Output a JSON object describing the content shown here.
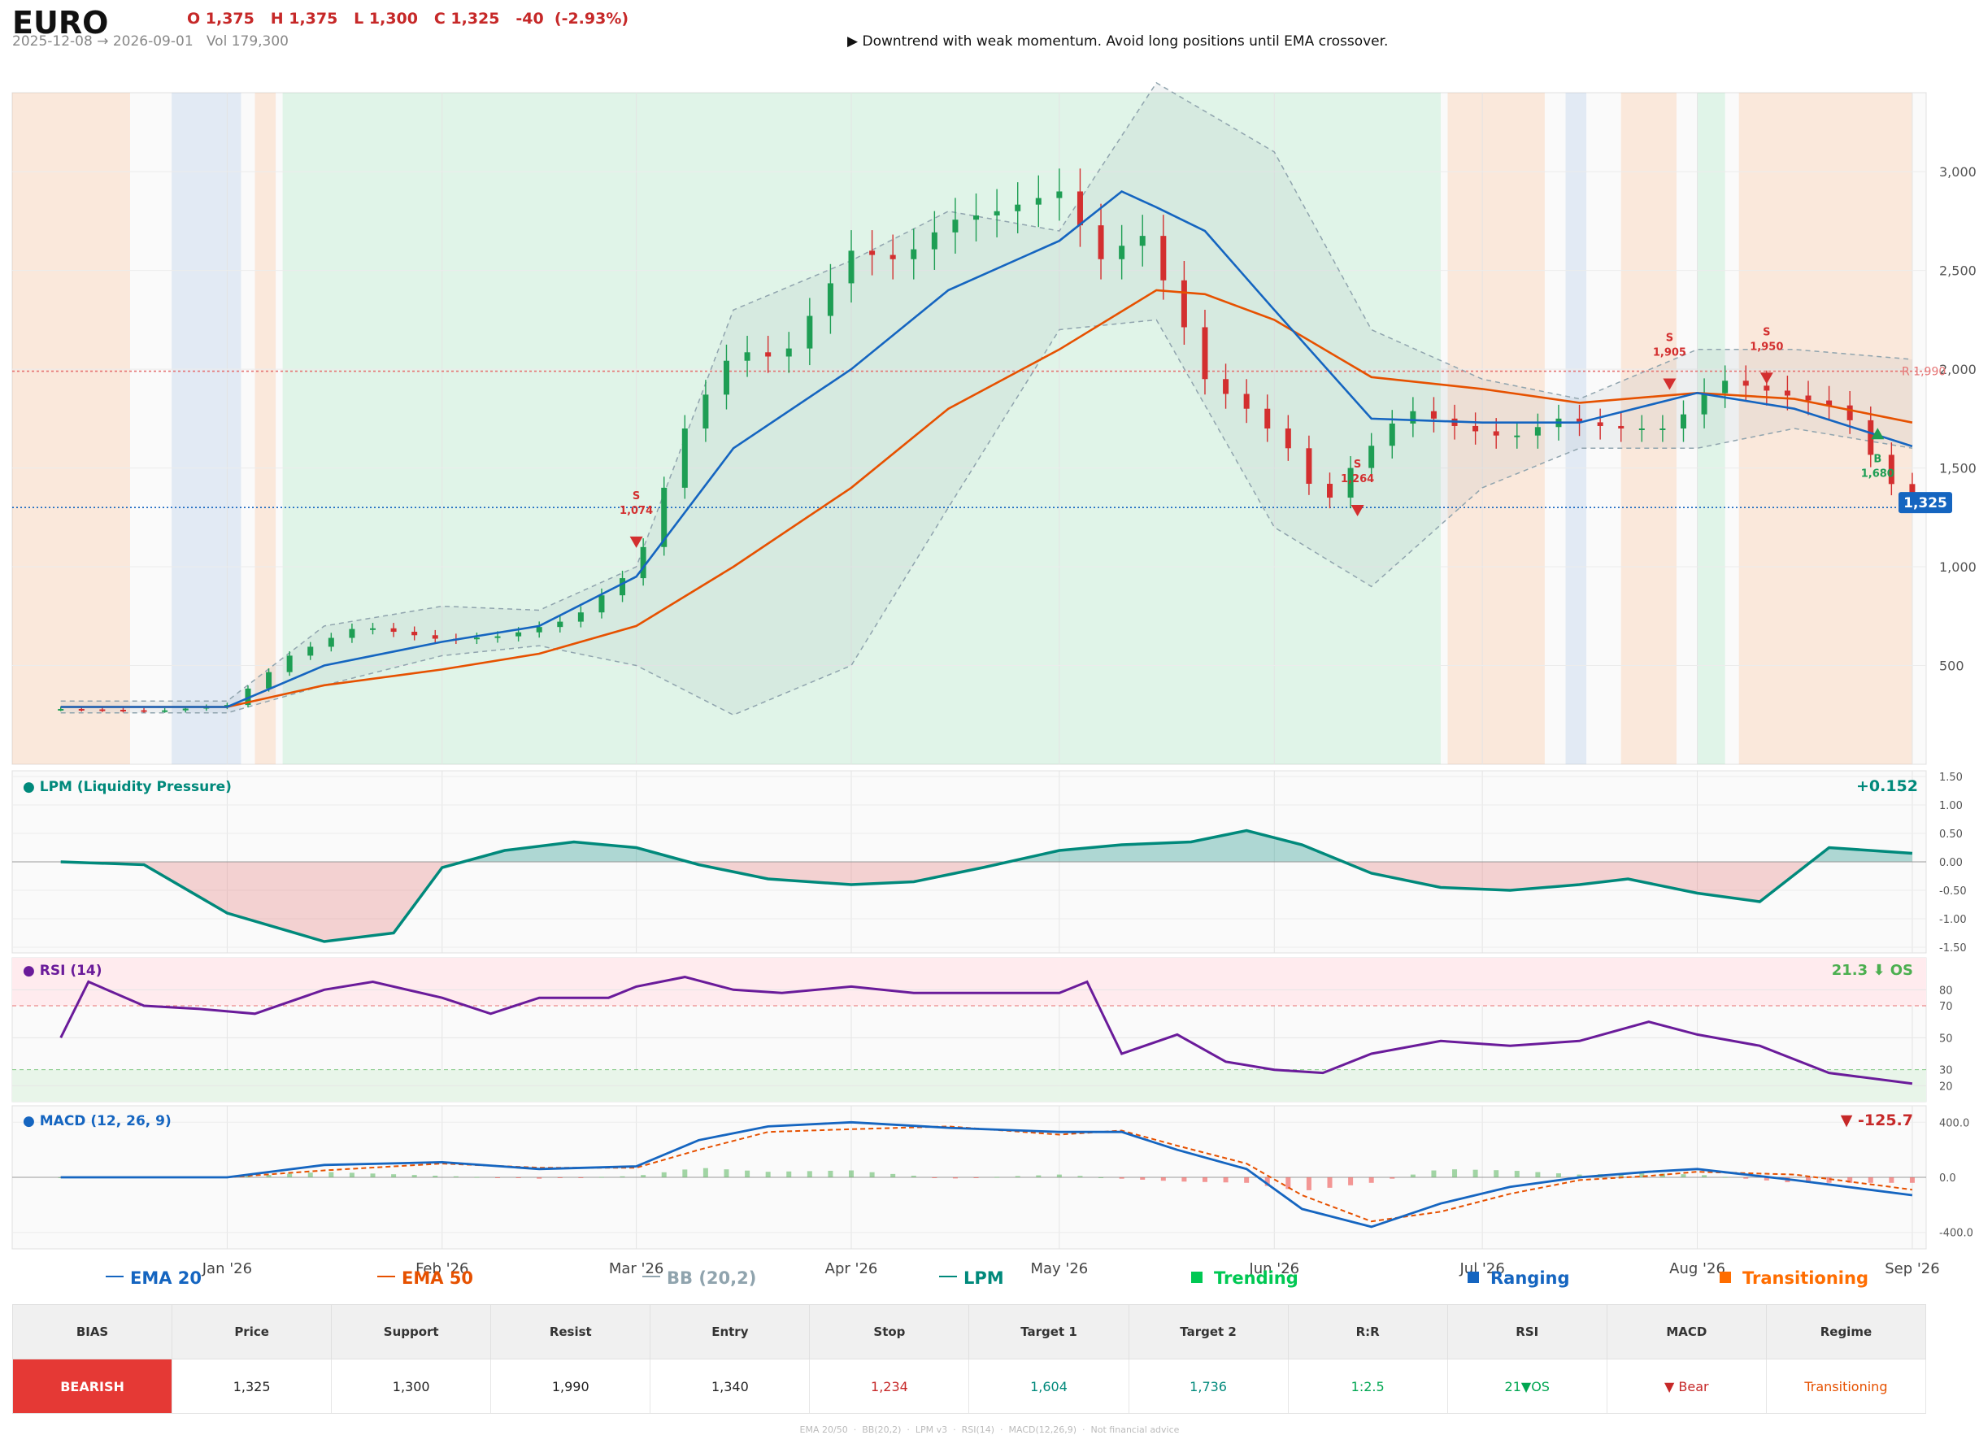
{
  "header": {
    "symbol": "EURO",
    "ohlc": "O 1,375   H 1,375   L 1,300   C 1,325   -40  (-2.93%)",
    "range_volume": "2025-12-08 → 2026-09-01   Vol 179,300",
    "note": "▶  Downtrend with weak momentum. Avoid long positions until EMA crossover."
  },
  "colors": {
    "ema20": "#1565c0",
    "ema50": "#e65100",
    "bb": "#90a4ae",
    "lpm": "#00897b",
    "trending": "#00c853",
    "ranging": "#1565c0",
    "transitioning": "#ff6d00",
    "bull_candle": "#1e9e54",
    "bear_candle": "#d32f2f",
    "rsi": "#6a1b9a",
    "macd": "#1565c0",
    "macd_signal": "#e65100",
    "bearish": "#e53935"
  },
  "chart_data": [
    {
      "type": "candlestick",
      "title": "EURO",
      "x_range": [
        "2025-12-08",
        "2026-09-01"
      ],
      "x_ticks": [
        "Jan '26",
        "Feb '26",
        "Mar '26",
        "Apr '26",
        "May '26",
        "Jun '26",
        "Jul '26",
        "Aug '26",
        "Sep '26"
      ],
      "y_ticks": [
        "500",
        "1,000",
        "1,500",
        "2,000",
        "2,500",
        "3,000"
      ],
      "ylim": [
        0,
        3400
      ],
      "last_price_label": "1,325",
      "resistance_label": "R 1,990",
      "resistance": 1990,
      "support": 1300,
      "series": [
        {
          "name": "EMA 20",
          "x": [
            "2025-12-08",
            "2026-01-01",
            "2026-01-15",
            "2026-02-01",
            "2026-02-15",
            "2026-03-01",
            "2026-03-15",
            "2026-04-01",
            "2026-04-15",
            "2026-05-01",
            "2026-05-10",
            "2026-05-15",
            "2026-05-22",
            "2026-06-01",
            "2026-06-15",
            "2026-07-01",
            "2026-07-15",
            "2026-08-01",
            "2026-08-15",
            "2026-09-01"
          ],
          "values": [
            290,
            290,
            500,
            620,
            700,
            950,
            1600,
            2000,
            2400,
            2650,
            2900,
            2820,
            2700,
            2300,
            1750,
            1730,
            1730,
            1880,
            1800,
            1610
          ]
        },
        {
          "name": "EMA 50",
          "x": [
            "2025-12-08",
            "2026-01-01",
            "2026-01-15",
            "2026-02-01",
            "2026-02-15",
            "2026-03-01",
            "2026-03-15",
            "2026-04-01",
            "2026-04-15",
            "2026-05-01",
            "2026-05-15",
            "2026-05-22",
            "2026-06-01",
            "2026-06-15",
            "2026-07-01",
            "2026-07-15",
            "2026-08-01",
            "2026-08-15",
            "2026-09-01"
          ],
          "values": [
            290,
            290,
            400,
            480,
            560,
            700,
            1000,
            1400,
            1800,
            2100,
            2400,
            2380,
            2250,
            1960,
            1900,
            1830,
            1880,
            1850,
            1730
          ]
        },
        {
          "name": "BB upper",
          "x": [
            "2025-12-08",
            "2026-01-01",
            "2026-01-15",
            "2026-02-01",
            "2026-02-15",
            "2026-03-01",
            "2026-03-15",
            "2026-04-01",
            "2026-04-15",
            "2026-05-01",
            "2026-05-15",
            "2026-06-01",
            "2026-06-15",
            "2026-07-01",
            "2026-07-15",
            "2026-08-01",
            "2026-08-15",
            "2026-09-01"
          ],
          "values": [
            320,
            320,
            700,
            800,
            780,
            1000,
            2300,
            2550,
            2800,
            2700,
            3450,
            3100,
            2200,
            1950,
            1850,
            2100,
            2100,
            2050
          ]
        },
        {
          "name": "BB lower",
          "x": [
            "2025-12-08",
            "2026-01-01",
            "2026-01-15",
            "2026-02-01",
            "2026-02-15",
            "2026-03-01",
            "2026-03-15",
            "2026-04-01",
            "2026-04-15",
            "2026-05-01",
            "2026-05-15",
            "2026-06-01",
            "2026-06-15",
            "2026-07-01",
            "2026-07-15",
            "2026-08-01",
            "2026-08-15",
            "2026-09-01"
          ],
          "values": [
            260,
            260,
            400,
            550,
            600,
            500,
            250,
            500,
            1300,
            2200,
            2250,
            1200,
            900,
            1400,
            1600,
            1600,
            1700,
            1600
          ]
        },
        {
          "name": "Close",
          "x": [
            "2025-12-08",
            "2025-12-22",
            "2026-01-01",
            "2026-01-10",
            "2026-01-20",
            "2026-02-01",
            "2026-02-10",
            "2026-02-20",
            "2026-03-01",
            "2026-03-08",
            "2026-03-15",
            "2026-03-22",
            "2026-04-01",
            "2026-04-08",
            "2026-04-15",
            "2026-04-22",
            "2026-05-01",
            "2026-05-08",
            "2026-05-12",
            "2026-05-18",
            "2026-05-22",
            "2026-05-28",
            "2026-06-03",
            "2026-06-08",
            "2026-06-12",
            "2026-06-20",
            "2026-06-28",
            "2026-07-05",
            "2026-07-12",
            "2026-07-20",
            "2026-07-28",
            "2026-08-04",
            "2026-08-10",
            "2026-08-16",
            "2026-08-22",
            "2026-08-28",
            "2026-09-01"
          ],
          "values": [
            280,
            270,
            300,
            550,
            700,
            630,
            650,
            740,
            1000,
            1700,
            2100,
            2050,
            2600,
            2550,
            2750,
            2800,
            2900,
            2500,
            2750,
            2300,
            1950,
            1800,
            1600,
            1300,
            1500,
            1800,
            1700,
            1650,
            1750,
            1700,
            1700,
            1950,
            1900,
            1850,
            1800,
            1450,
            1325
          ]
        }
      ],
      "signals": [
        {
          "type": "S",
          "value": "1,074"
        },
        {
          "type": "S",
          "value": "1,264"
        },
        {
          "type": "S",
          "value": "1,905"
        },
        {
          "type": "S",
          "value": "1,950"
        },
        {
          "type": "B",
          "value": "1,680"
        }
      ]
    },
    {
      "type": "area",
      "title": "● LPM (Liquidity Pressure)",
      "value_label": "+0.152",
      "y_ticks": [
        "1.50",
        "1.00",
        "0.50",
        "0.00",
        "-0.50",
        "-1.00",
        "-1.50"
      ],
      "ylim": [
        -1.6,
        1.6
      ],
      "x": [
        "2025-12-08",
        "2025-12-20",
        "2026-01-01",
        "2026-01-15",
        "2026-01-25",
        "2026-02-01",
        "2026-02-10",
        "2026-02-20",
        "2026-03-01",
        "2026-03-10",
        "2026-03-20",
        "2026-04-01",
        "2026-04-10",
        "2026-04-20",
        "2026-05-01",
        "2026-05-10",
        "2026-05-20",
        "2026-05-28",
        "2026-06-05",
        "2026-06-15",
        "2026-06-25",
        "2026-07-05",
        "2026-07-15",
        "2026-07-22",
        "2026-08-01",
        "2026-08-10",
        "2026-08-20",
        "2026-09-01"
      ],
      "values": [
        0.0,
        -0.05,
        -0.9,
        -1.4,
        -1.25,
        -0.1,
        0.2,
        0.35,
        0.25,
        -0.05,
        -0.3,
        -0.4,
        -0.35,
        -0.1,
        0.2,
        0.3,
        0.35,
        0.55,
        0.3,
        -0.2,
        -0.45,
        -0.5,
        -0.4,
        -0.3,
        -0.55,
        -0.7,
        0.25,
        0.15
      ]
    },
    {
      "type": "line",
      "title": "● RSI (14)",
      "value_label": "21.3 ⬇ OS",
      "y_ticks": [
        "80",
        "70",
        "50",
        "30",
        "20"
      ],
      "ylim": [
        10,
        100
      ],
      "overbought": 70,
      "oversold": 30,
      "x": [
        "2025-12-08",
        "2025-12-12",
        "2025-12-20",
        "2025-12-28",
        "2026-01-05",
        "2026-01-15",
        "2026-01-22",
        "2026-02-01",
        "2026-02-08",
        "2026-02-15",
        "2026-02-25",
        "2026-03-01",
        "2026-03-08",
        "2026-03-15",
        "2026-03-22",
        "2026-04-01",
        "2026-04-10",
        "2026-04-20",
        "2026-05-01",
        "2026-05-05",
        "2026-05-10",
        "2026-05-18",
        "2026-05-25",
        "2026-06-01",
        "2026-06-08",
        "2026-06-15",
        "2026-06-25",
        "2026-07-05",
        "2026-07-15",
        "2026-07-25",
        "2026-08-01",
        "2026-08-10",
        "2026-08-20",
        "2026-09-01"
      ],
      "values": [
        50,
        85,
        70,
        68,
        65,
        80,
        85,
        75,
        65,
        75,
        75,
        82,
        88,
        80,
        78,
        82,
        78,
        78,
        78,
        85,
        40,
        52,
        35,
        30,
        28,
        40,
        48,
        45,
        48,
        60,
        52,
        45,
        28,
        21.3
      ]
    },
    {
      "type": "line",
      "title": "● MACD (12, 26, 9)",
      "value_label": "▼ -125.7",
      "y_ticks": [
        "400.0",
        "0.0",
        "-400.0"
      ],
      "ylim": [
        -520,
        520
      ],
      "x": [
        "2025-12-08",
        "2026-01-01",
        "2026-01-15",
        "2026-02-01",
        "2026-02-15",
        "2026-03-01",
        "2026-03-10",
        "2026-03-20",
        "2026-04-01",
        "2026-04-15",
        "2026-05-01",
        "2026-05-10",
        "2026-05-18",
        "2026-05-28",
        "2026-06-05",
        "2026-06-15",
        "2026-06-25",
        "2026-07-05",
        "2026-07-15",
        "2026-07-25",
        "2026-08-01",
        "2026-08-15",
        "2026-09-01"
      ],
      "series": [
        {
          "name": "MACD",
          "values": [
            0,
            0,
            90,
            110,
            60,
            80,
            270,
            370,
            400,
            360,
            330,
            330,
            200,
            60,
            -230,
            -360,
            -190,
            -70,
            0,
            40,
            60,
            -20,
            -130
          ]
        },
        {
          "name": "Signal",
          "values": [
            0,
            0,
            50,
            100,
            70,
            70,
            200,
            330,
            350,
            370,
            310,
            340,
            230,
            100,
            -130,
            -320,
            -250,
            -120,
            -20,
            10,
            40,
            20,
            -90
          ]
        }
      ]
    }
  ],
  "legend": {
    "ema20": "EMA 20",
    "ema50": "EMA 50",
    "bb": "BB (20,2)",
    "lpm": "LPM",
    "trending": "Trending",
    "ranging": "Ranging",
    "transitioning": "Transitioning"
  },
  "summary": {
    "headers": [
      "BIAS",
      "Price",
      "Support",
      "Resist",
      "Entry",
      "Stop",
      "Target 1",
      "Target 2",
      "R:R",
      "RSI",
      "MACD",
      "Regime"
    ],
    "values": [
      "BEARISH",
      "1,325",
      "1,300",
      "1,990",
      "1,340",
      "1,234",
      "1,604",
      "1,736",
      "1:2.5",
      "21▼OS",
      "▼ Bear",
      "Transitioning"
    ],
    "value_colors": [
      "#ffffff",
      "#222222",
      "#222222",
      "#222222",
      "#222222",
      "#c62828",
      "#00897b",
      "#00897b",
      "#00a651",
      "#00a651",
      "#c62828",
      "#e65100"
    ]
  },
  "footer": "EMA 20/50  ·  BB(20,2)  ·  LPM v3  ·  RSI(14)  ·  MACD(12,26,9)  ·  Not financial advice"
}
